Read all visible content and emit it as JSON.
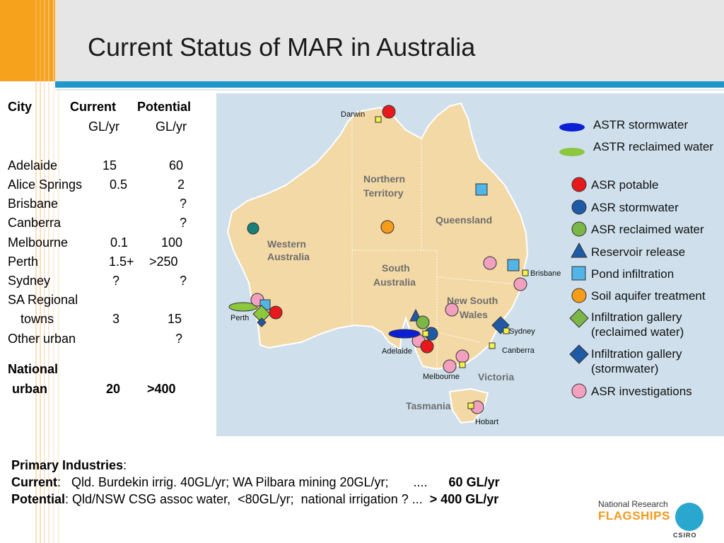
{
  "slide": {
    "title": "Current Status of MAR in Australia"
  },
  "table": {
    "header": {
      "city": "City",
      "current": "Current",
      "potential": "Potential"
    },
    "units": {
      "current": "GL/yr",
      "potential": "GL/yr"
    },
    "rows": [
      {
        "city": "Adelaide",
        "current": "15",
        "potential": "60"
      },
      {
        "city": "Alice Springs",
        "current": "0.5",
        "potential": "2"
      },
      {
        "city": "Brisbane",
        "current": "",
        "potential": "?"
      },
      {
        "city": "Canberra",
        "current": "",
        "potential": "?"
      },
      {
        "city": "Melbourne",
        "current": "0.1",
        "potential": "100"
      },
      {
        "city": "Perth",
        "current": "1.5+",
        "potential": ">250"
      },
      {
        "city": "Sydney",
        "current": "?",
        "potential": "?"
      },
      {
        "city": "SA Regional",
        "current": "",
        "potential": ""
      },
      {
        "city": "towns",
        "current": "3",
        "potential": "15"
      },
      {
        "city": "Other urban",
        "current": "",
        "potential": "?"
      }
    ],
    "national": {
      "label1": "National",
      "label2": "urban",
      "current": "20",
      "potential": ">400"
    }
  },
  "map": {
    "regions": {
      "wa1": "Western",
      "wa2": "Australia",
      "nt1": "Northern",
      "nt2": "Territory",
      "sa1": "South",
      "sa2": "Australia",
      "qld": "Queensland",
      "nsw1": "New South",
      "nsw2": "Wales",
      "vic": "Victoria",
      "tas": "Tasmania"
    },
    "places": {
      "darwin": "Darwin",
      "perth": "Perth",
      "adelaide": "Adelaide",
      "melbourne": "Melbourne",
      "hobart": "Hobart",
      "sydney": "Sydney",
      "canberra": "Canberra",
      "brisbane": "Brisbane"
    },
    "legend": [
      {
        "label": "ASTR stormwater",
        "icon": "blue-ellipse-icon",
        "color": "#0a1fd6"
      },
      {
        "label": "ASTR reclaimed water",
        "icon": "green-ellipse-icon",
        "color": "#8dc63f"
      },
      {
        "label": "ASR potable",
        "icon": "red-circle-icon",
        "color": "#e8191d"
      },
      {
        "label": "ASR stormwater",
        "icon": "blue-circle-icon",
        "color": "#1f5aa6"
      },
      {
        "label": "ASR reclaimed water",
        "icon": "green-circle-icon",
        "color": "#7ab648"
      },
      {
        "label": "Reservoir release",
        "icon": "blue-triangle-icon",
        "color": "#1f5aa6"
      },
      {
        "label": "Pond infiltration",
        "icon": "lightblue-square-icon",
        "color": "#52b5e8"
      },
      {
        "label": "Soil aquifer treatment",
        "icon": "orange-circle-icon",
        "color": "#f59c1a"
      },
      {
        "label": "Infiltration gallery",
        "label2": "(reclaimed water)",
        "icon": "green-diamond-icon",
        "color": "#7ab648"
      },
      {
        "label": "Infiltration gallery",
        "label2": "(stormwater)",
        "icon": "blue-diamond-icon",
        "color": "#1f5aa6"
      },
      {
        "label": "ASR investigations",
        "icon": "pink-circle-icon",
        "color": "#f2a0c0"
      }
    ]
  },
  "bottom": {
    "heading": "Primary Industries",
    "heading_suffix": ":",
    "current_label": "Current",
    "current_text": ":   Qld. Burdekin irrig. 40GL/yr; WA Pilbara mining 20GL/yr;       ....      ",
    "current_total": "60 GL/yr",
    "potential_label": "Potential",
    "potential_text": ": Qld/NSW CSG assoc water,  <80GL/yr;  national irrigation ? ...  ",
    "potential_total": "> 400 GL/yr"
  },
  "logo": {
    "line1": "National Research",
    "line2": "FLAGSHIPS",
    "csiro": "CSIRO"
  }
}
